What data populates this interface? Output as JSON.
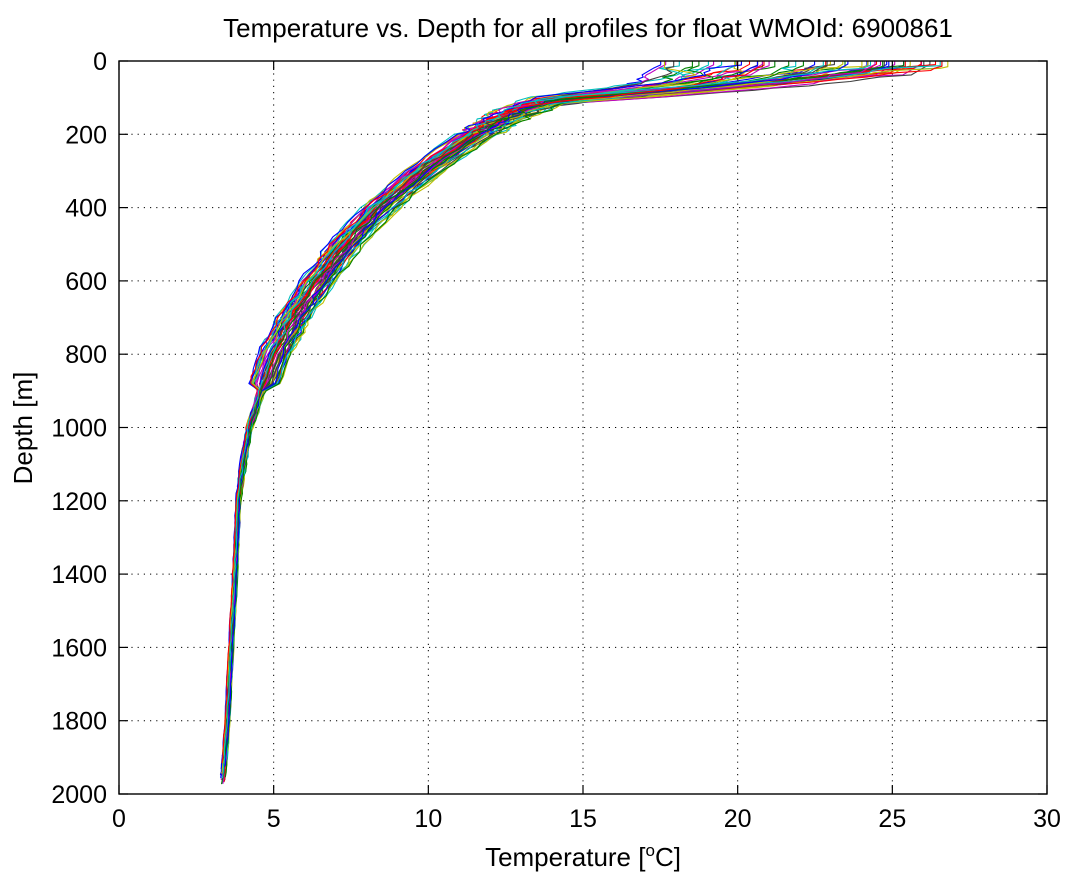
{
  "chart_data": {
    "type": "line",
    "title": "Temperature vs. Depth for all profiles for float WMOId: 6900861",
    "xlabel": "Temperature [",
    "xlabel_sup": "o",
    "xlabel_end": "C]",
    "ylabel": "Depth [m]",
    "xlim": [
      0,
      30
    ],
    "ylim": [
      0,
      2000
    ],
    "y_reversed": true,
    "grid": true,
    "xticks": [
      0,
      5,
      10,
      15,
      20,
      25,
      30
    ],
    "yticks": [
      0,
      200,
      400,
      600,
      800,
      1000,
      1200,
      1400,
      1600,
      1800,
      2000
    ],
    "xtick_labels": [
      "0",
      "5",
      "10",
      "15",
      "20",
      "25",
      "30"
    ],
    "ytick_labels": [
      "0",
      "200",
      "400",
      "600",
      "800",
      "1000",
      "1200",
      "1400",
      "1600",
      "1800",
      "2000"
    ],
    "profile_count": 60,
    "colors": [
      "#0000ff",
      "#008000",
      "#ff0000",
      "#00bfbf",
      "#bf00bf",
      "#bfbf00",
      "#404040"
    ],
    "mean_profile": {
      "depth": [
        20,
        40,
        60,
        80,
        100,
        150,
        200,
        300,
        400,
        500,
        600,
        700,
        800,
        900,
        1000,
        1100,
        1200,
        1400,
        1600,
        1800,
        1970
      ],
      "temperature": [
        22.5,
        20.0,
        17.5,
        15.5,
        14.0,
        12.5,
        11.5,
        9.8,
        8.4,
        7.3,
        6.4,
        5.6,
        5.0,
        4.6,
        4.2,
        4.0,
        3.85,
        3.75,
        3.62,
        3.5,
        3.35
      ]
    },
    "surface_temperature_range": [
      17.5,
      26.8
    ],
    "bottom_depth_range": [
      1880,
      1975
    ]
  }
}
